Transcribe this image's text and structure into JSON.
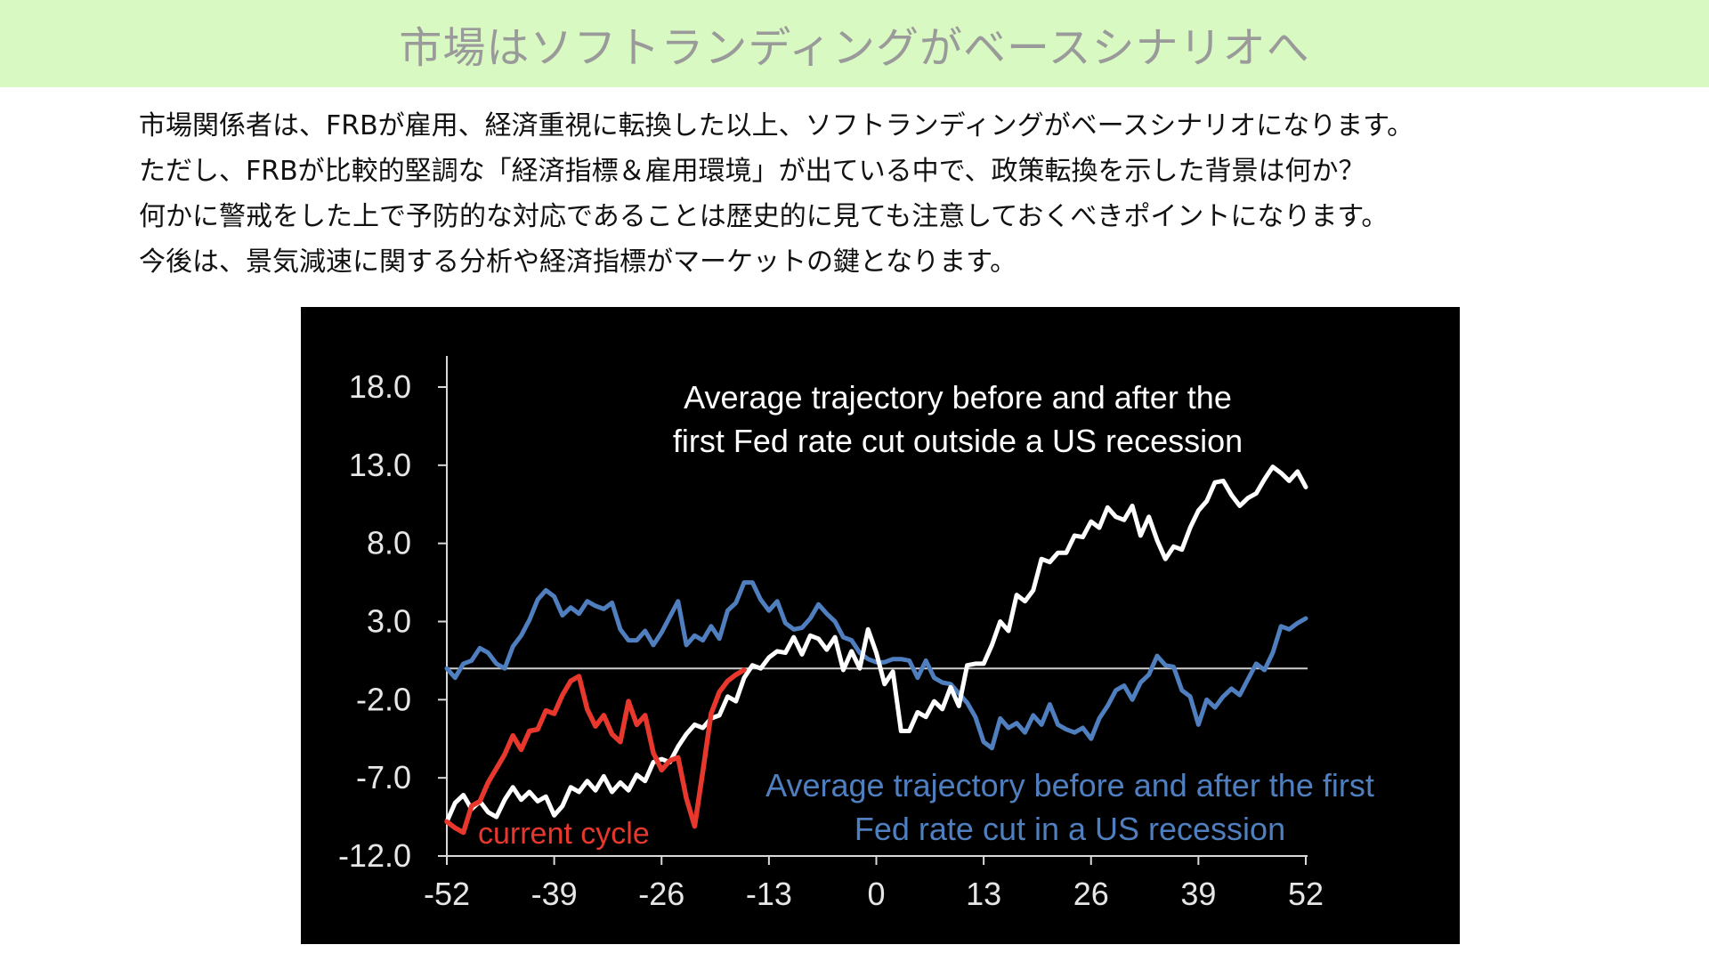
{
  "header": {
    "title": "市場はソフトランディングがベースシナリオへ"
  },
  "body": {
    "lines": [
      "市場関係者は、FRBが雇用、経済重視に転換した以上、ソフトランディングがベースシナリオになります。",
      "ただし、FRBが比較的堅調な「経済指標＆雇用環境」が出ている中で、政策転換を示した背景は何か？",
      "何かに警戒をした上で予防的な対応であることは歴史的に見ても注意しておくべきポイントになります。",
      "今後は、景気減速に関する分析や経済指標がマーケットの鍵となります。"
    ]
  },
  "chart_data": {
    "type": "line",
    "title": "",
    "xlabel": "",
    "ylabel": "",
    "xlim": [
      -52,
      52
    ],
    "ylim": [
      -12,
      18
    ],
    "xticks": [
      "-52",
      "-39",
      "-26",
      "-13",
      "0",
      "13",
      "26",
      "39",
      "52"
    ],
    "yticks": [
      "18.0",
      "13.0",
      "8.0",
      "3.0",
      "-2.0",
      "-7.0",
      "-12.0"
    ],
    "reference_line": 0,
    "grid": false,
    "annotations": {
      "white": [
        "Average trajectory before and after the",
        "first Fed rate cut outside a US recession"
      ],
      "blue": [
        "Average trajectory before and after the first",
        "Fed rate cut in a US recession"
      ],
      "red": [
        "current cycle"
      ]
    },
    "colors": {
      "background": "#000000",
      "white": "#ffffff",
      "blue": "#4f7fbf",
      "red": "#e8382d",
      "axis": "#d9d9d9",
      "text": "#e6e6e6"
    },
    "series": [
      {
        "key": "white",
        "points": [
          [
            -52,
            -9.8
          ],
          [
            -51,
            -8.6
          ],
          [
            -50,
            -8.1
          ],
          [
            -49,
            -9.0
          ],
          [
            -48,
            -8.5
          ],
          [
            -47,
            -9.2
          ],
          [
            -46,
            -9.5
          ],
          [
            -45,
            -8.4
          ],
          [
            -44,
            -7.6
          ],
          [
            -43,
            -8.4
          ],
          [
            -42,
            -7.9
          ],
          [
            -41,
            -8.5
          ],
          [
            -40,
            -8.2
          ],
          [
            -39,
            -9.4
          ],
          [
            -38,
            -8.8
          ],
          [
            -37,
            -7.6
          ],
          [
            -36,
            -7.9
          ],
          [
            -35,
            -7.2
          ],
          [
            -34,
            -7.8
          ],
          [
            -33,
            -6.9
          ],
          [
            -32,
            -7.9
          ],
          [
            -31,
            -7.3
          ],
          [
            -30,
            -7.8
          ],
          [
            -29,
            -6.8
          ],
          [
            -28,
            -7.2
          ],
          [
            -27,
            -6.0
          ],
          [
            -26,
            -5.8
          ],
          [
            -25,
            -6.0
          ],
          [
            -24,
            -5.0
          ],
          [
            -23,
            -4.2
          ],
          [
            -22,
            -3.6
          ],
          [
            -21,
            -3.8
          ],
          [
            -20,
            -3.2
          ],
          [
            -19,
            -3.0
          ],
          [
            -18,
            -1.8
          ],
          [
            -17,
            -2.1
          ],
          [
            -16,
            -0.6
          ],
          [
            -15,
            0.2
          ],
          [
            -14,
            0.0
          ],
          [
            -13,
            0.7
          ],
          [
            -12,
            1.1
          ],
          [
            -11,
            1.0
          ],
          [
            -10,
            2.0
          ],
          [
            -9,
            0.9
          ],
          [
            -8,
            2.1
          ],
          [
            -7,
            1.9
          ],
          [
            -6,
            1.2
          ],
          [
            -5,
            2.0
          ],
          [
            -4,
            -0.1
          ],
          [
            -3,
            1.1
          ],
          [
            -2,
            0.0
          ],
          [
            -1,
            2.5
          ],
          [
            0,
            1.0
          ],
          [
            1,
            -1.0
          ],
          [
            2,
            -0.2
          ],
          [
            3,
            -4.0
          ],
          [
            4,
            -4.0
          ],
          [
            5,
            -2.8
          ],
          [
            6,
            -3.1
          ],
          [
            7,
            -2.1
          ],
          [
            8,
            -2.6
          ],
          [
            9,
            -1.2
          ],
          [
            10,
            -2.4
          ],
          [
            11,
            0.2
          ],
          [
            12,
            0.3
          ],
          [
            13,
            0.3
          ],
          [
            14,
            1.5
          ],
          [
            15,
            3.0
          ],
          [
            16,
            2.4
          ],
          [
            17,
            4.7
          ],
          [
            18,
            4.3
          ],
          [
            19,
            5.0
          ],
          [
            20,
            7.0
          ],
          [
            21,
            6.8
          ],
          [
            22,
            7.4
          ],
          [
            23,
            7.4
          ],
          [
            24,
            8.5
          ],
          [
            25,
            8.4
          ],
          [
            26,
            9.4
          ],
          [
            27,
            9.0
          ],
          [
            28,
            10.3
          ],
          [
            29,
            9.7
          ],
          [
            30,
            9.5
          ],
          [
            31,
            10.4
          ],
          [
            32,
            8.5
          ],
          [
            33,
            9.7
          ],
          [
            34,
            8.2
          ],
          [
            35,
            7.0
          ],
          [
            36,
            7.8
          ],
          [
            37,
            7.6
          ],
          [
            38,
            9.0
          ],
          [
            39,
            10.1
          ],
          [
            40,
            10.7
          ],
          [
            41,
            11.9
          ],
          [
            42,
            12.0
          ],
          [
            43,
            11.1
          ],
          [
            44,
            10.4
          ],
          [
            45,
            10.9
          ],
          [
            46,
            11.2
          ],
          [
            47,
            12.1
          ],
          [
            48,
            12.9
          ],
          [
            49,
            12.5
          ],
          [
            50,
            12.0
          ],
          [
            51,
            12.6
          ],
          [
            52,
            11.6
          ]
        ]
      },
      {
        "key": "blue",
        "points": [
          [
            -52,
            0.0
          ],
          [
            -51,
            -0.6
          ],
          [
            -50,
            0.3
          ],
          [
            -49,
            0.5
          ],
          [
            -48,
            1.3
          ],
          [
            -47,
            1.0
          ],
          [
            -46,
            0.3
          ],
          [
            -45,
            0.0
          ],
          [
            -44,
            1.4
          ],
          [
            -43,
            2.1
          ],
          [
            -42,
            3.1
          ],
          [
            -41,
            4.4
          ],
          [
            -40,
            5.0
          ],
          [
            -39,
            4.6
          ],
          [
            -38,
            3.4
          ],
          [
            -37,
            3.9
          ],
          [
            -36,
            3.5
          ],
          [
            -35,
            4.3
          ],
          [
            -34,
            4.0
          ],
          [
            -33,
            3.8
          ],
          [
            -32,
            4.2
          ],
          [
            -31,
            2.5
          ],
          [
            -30,
            1.8
          ],
          [
            -29,
            1.8
          ],
          [
            -28,
            2.4
          ],
          [
            -27,
            1.5
          ],
          [
            -26,
            2.3
          ],
          [
            -25,
            3.3
          ],
          [
            -24,
            4.3
          ],
          [
            -23,
            1.5
          ],
          [
            -22,
            2.1
          ],
          [
            -21,
            1.8
          ],
          [
            -20,
            2.7
          ],
          [
            -19,
            1.9
          ],
          [
            -18,
            3.7
          ],
          [
            -17,
            4.2
          ],
          [
            -16,
            5.5
          ],
          [
            -15,
            5.5
          ],
          [
            -14,
            4.4
          ],
          [
            -13,
            3.7
          ],
          [
            -12,
            4.3
          ],
          [
            -11,
            2.9
          ],
          [
            -10,
            2.5
          ],
          [
            -9,
            2.6
          ],
          [
            -8,
            3.2
          ],
          [
            -7,
            4.1
          ],
          [
            -6,
            3.5
          ],
          [
            -5,
            3.0
          ],
          [
            -4,
            2.0
          ],
          [
            -3,
            1.8
          ],
          [
            -2,
            1.0
          ],
          [
            -1,
            0.6
          ],
          [
            0,
            0.4
          ],
          [
            1,
            0.4
          ],
          [
            2,
            0.6
          ],
          [
            3,
            0.6
          ],
          [
            4,
            0.5
          ],
          [
            5,
            -0.6
          ],
          [
            6,
            0.5
          ],
          [
            7,
            -0.6
          ],
          [
            8,
            -0.9
          ],
          [
            9,
            -1.0
          ],
          [
            10,
            -1.6
          ],
          [
            11,
            -2.2
          ],
          [
            12,
            -3.1
          ],
          [
            13,
            -4.7
          ],
          [
            14,
            -5.1
          ],
          [
            15,
            -3.2
          ],
          [
            16,
            -3.8
          ],
          [
            17,
            -3.5
          ],
          [
            18,
            -4.1
          ],
          [
            19,
            -3.0
          ],
          [
            20,
            -3.6
          ],
          [
            21,
            -2.3
          ],
          [
            22,
            -3.6
          ],
          [
            23,
            -3.9
          ],
          [
            24,
            -4.1
          ],
          [
            25,
            -3.8
          ],
          [
            26,
            -4.5
          ],
          [
            27,
            -3.2
          ],
          [
            28,
            -2.4
          ],
          [
            29,
            -1.4
          ],
          [
            30,
            -1.1
          ],
          [
            31,
            -2.0
          ],
          [
            32,
            -0.9
          ],
          [
            33,
            -0.4
          ],
          [
            34,
            0.8
          ],
          [
            35,
            0.2
          ],
          [
            36,
            0.1
          ],
          [
            37,
            -1.4
          ],
          [
            38,
            -1.8
          ],
          [
            39,
            -3.6
          ],
          [
            40,
            -2.0
          ],
          [
            41,
            -2.5
          ],
          [
            42,
            -1.8
          ],
          [
            43,
            -1.3
          ],
          [
            44,
            -1.7
          ],
          [
            45,
            -0.7
          ],
          [
            46,
            0.3
          ],
          [
            47,
            -0.1
          ],
          [
            48,
            1.0
          ],
          [
            49,
            2.7
          ],
          [
            50,
            2.5
          ],
          [
            51,
            2.9
          ],
          [
            52,
            3.2
          ]
        ]
      },
      {
        "key": "red",
        "points": [
          [
            -52,
            -9.8
          ],
          [
            -51,
            -10.2
          ],
          [
            -50,
            -10.5
          ],
          [
            -49,
            -8.8
          ],
          [
            -48,
            -8.5
          ],
          [
            -47,
            -7.3
          ],
          [
            -46,
            -6.4
          ],
          [
            -45,
            -5.5
          ],
          [
            -44,
            -4.3
          ],
          [
            -43,
            -5.2
          ],
          [
            -42,
            -4.0
          ],
          [
            -41,
            -3.9
          ],
          [
            -40,
            -2.7
          ],
          [
            -39,
            -2.9
          ],
          [
            -38,
            -1.7
          ],
          [
            -37,
            -0.8
          ],
          [
            -36,
            -0.5
          ],
          [
            -35,
            -2.6
          ],
          [
            -34,
            -3.7
          ],
          [
            -33,
            -3.0
          ],
          [
            -32,
            -4.2
          ],
          [
            -31,
            -4.7
          ],
          [
            -30,
            -2.1
          ],
          [
            -29,
            -3.6
          ],
          [
            -28,
            -3.0
          ],
          [
            -27,
            -5.4
          ],
          [
            -26,
            -6.5
          ],
          [
            -25,
            -5.9
          ],
          [
            -24,
            -5.7
          ],
          [
            -23,
            -8.3
          ],
          [
            -22,
            -10.1
          ],
          [
            -21,
            -6.6
          ],
          [
            -20,
            -2.9
          ],
          [
            -19,
            -1.5
          ],
          [
            -18,
            -0.8
          ],
          [
            -17,
            -0.4
          ],
          [
            -16,
            -0.1
          ]
        ]
      }
    ]
  }
}
